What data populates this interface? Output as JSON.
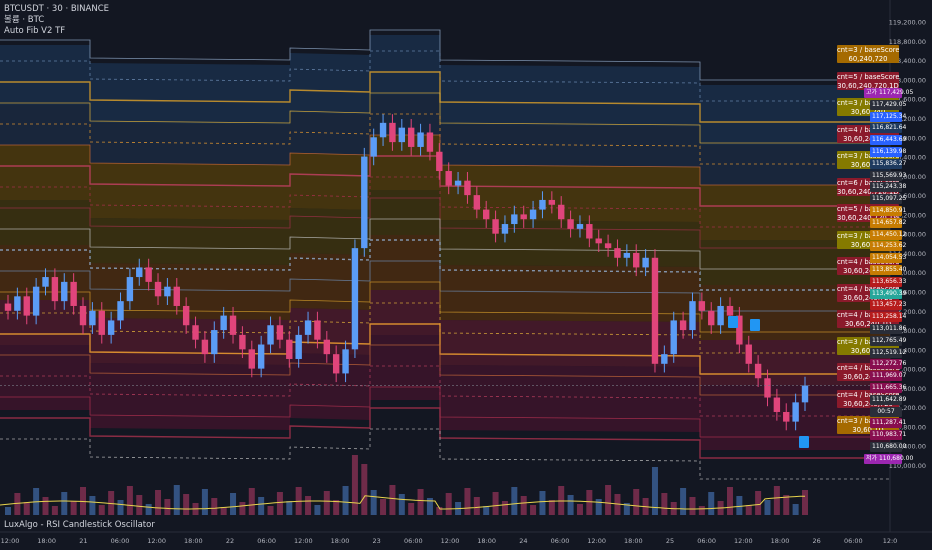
{
  "legend": {
    "symbol": "BTCUSDT · 30 · BINANCE",
    "line2": "볼륨 · BTC",
    "line3": "Auto Fib V2 TF"
  },
  "oscillator_title": "LuxAlgo - RSI Candlestick Oscillator",
  "price_axis": {
    "ticks": [
      "119,200.00",
      "118,800.00",
      "118,400.00",
      "118,000.00",
      "117,600.00",
      "117,200.00",
      "116,800.00",
      "116,400.00",
      "116,000.00",
      "115,600.00",
      "115,200.00",
      "114,800.00",
      "114,400.00",
      "114,000.00",
      "113,600.00",
      "113,200.00",
      "112,800.00",
      "112,400.00",
      "112,000.00",
      "111,600.00",
      "111,200.00",
      "110,800.00",
      "110,400.00",
      "110,000.00"
    ]
  },
  "time_axis": {
    "ticks": [
      "12:00",
      "18:00",
      "21",
      "06:00",
      "12:00",
      "18:00",
      "22",
      "06:00",
      "12:00",
      "18:00",
      "23",
      "06:00",
      "12:00",
      "18:00",
      "24",
      "06:00",
      "12:00",
      "18:00",
      "25",
      "06:00",
      "12:00",
      "18:00",
      "26",
      "06:00",
      "12:0"
    ]
  },
  "price_labels": [
    {
      "text": "고가",
      "value": "117,429.05",
      "color": "#9c27b0"
    },
    {
      "text": "",
      "value": "117,429.05",
      "color": "#2a2e39"
    },
    {
      "text": "",
      "value": "117,125.34",
      "color": "#2962ff"
    },
    {
      "text": "",
      "value": "116,821.64",
      "color": "#1e3a5f"
    },
    {
      "text": "",
      "value": "116,443.69",
      "color": "#2962ff"
    },
    {
      "text": "",
      "value": "116,139.98",
      "color": "#2962ff"
    },
    {
      "text": "",
      "value": "115,836.27",
      "color": "#1e3a5f"
    },
    {
      "text": "",
      "value": "115,569.93",
      "color": "#2a2e39"
    },
    {
      "text": "",
      "value": "115,243.38",
      "color": "#2a2e39"
    },
    {
      "text": "",
      "value": "115,097.25",
      "color": "#2a2e39"
    },
    {
      "text": "",
      "value": "114,850.91",
      "color": "#c77c02"
    },
    {
      "text": "",
      "value": "114,657.82",
      "color": "#c77c02"
    },
    {
      "text": "",
      "value": "114,450.12",
      "color": "#c77c02"
    },
    {
      "text": "",
      "value": "114,253.62",
      "color": "#c77c02"
    },
    {
      "text": "",
      "value": "114,054.53",
      "color": "#c77c02"
    },
    {
      "text": "",
      "value": "113,855.40",
      "color": "#c77c02"
    },
    {
      "text": "",
      "value": "113,656.33",
      "color": "#b71c1c"
    },
    {
      "text": "",
      "value": "113,490.39",
      "color": "#26a69a"
    },
    {
      "text": "",
      "value": "113,457.23",
      "color": "#b71c1c"
    },
    {
      "text": "",
      "value": "113,258.14",
      "color": "#b71c1c"
    },
    {
      "text": "",
      "value": "113,011.86",
      "color": "#2a2e39"
    },
    {
      "text": "",
      "value": "112,765.49",
      "color": "#2a2e39"
    },
    {
      "text": "",
      "value": "112,519.12",
      "color": "#2a2e39"
    },
    {
      "text": "",
      "value": "112,272.76",
      "color": "#880e4f"
    },
    {
      "text": "",
      "value": "111,969.07",
      "color": "#880e4f"
    },
    {
      "text": "",
      "value": "111,665.36",
      "color": "#880e4f"
    },
    {
      "text": "",
      "value": "111,642.89",
      "color": "#2a2e39"
    },
    {
      "text": "",
      "value": "00:57",
      "color": "#2a2e39"
    },
    {
      "text": "",
      "value": "111,287.41",
      "color": "#880e4f"
    },
    {
      "text": "",
      "value": "110,983.71",
      "color": "#880e4f"
    },
    {
      "text": "",
      "value": "110,680.00",
      "color": "#2a2e39"
    },
    {
      "text": "저가",
      "value": "110,680.00",
      "color": "#9c27b0"
    }
  ],
  "tags": [
    {
      "line1": "cnt=3 / baseScore=",
      "line2": "60,240,720",
      "color": "#a56a00"
    },
    {
      "line1": "cnt=5 / baseScore=",
      "line2": "30,60,240,720,1D",
      "color": "#8b1a2b"
    },
    {
      "line1": "cnt=3 / baseScore=",
      "line2": "30,60,240",
      "color": "#857a00"
    },
    {
      "line1": "cnt=4 / baseScore=",
      "line2": "30,60,240,720",
      "color": "#8b1a2b"
    },
    {
      "line1": "cnt=3 / baseScore=",
      "line2": "30,60,240",
      "color": "#857a00"
    },
    {
      "line1": "cnt=6 / baseScore=",
      "line2": "30,60,240,720,1D,1W",
      "color": "#8b1a2b"
    },
    {
      "line1": "cnt=5 / baseScore=",
      "line2": "30,60,240,720,1W",
      "color": "#8b1a2b"
    },
    {
      "line1": "cnt=3 / baseScore=",
      "line2": "30,60,240",
      "color": "#857a00"
    },
    {
      "line1": "cnt=4 / baseScore=",
      "line2": "30,60,240,720",
      "color": "#8b1a2b"
    },
    {
      "line1": "cnt=4 / baseScore=",
      "line2": "30,60,240,720",
      "color": "#8b1a2b"
    },
    {
      "line1": "cnt=4 / baseScore=",
      "line2": "30,60,240,1D",
      "color": "#8b1a2b"
    },
    {
      "line1": "cnt=3 / baseScore=",
      "line2": "30,60,720",
      "color": "#857a00"
    },
    {
      "line1": "cnt=4 / baseScore=",
      "line2": "30,60,240,720",
      "color": "#8b1a2b"
    },
    {
      "line1": "cnt=4 / baseScore=",
      "line2": "30,60,240,720",
      "color": "#8b1a2b"
    },
    {
      "line1": "cnt=3 / baseScore=",
      "line2": "30,60,1D",
      "color": "#a56a00"
    }
  ],
  "chart_data": {
    "type": "candlestick",
    "ylim": [
      110000,
      119400
    ],
    "series": [
      {
        "values": [
          {
            "c": 113200
          },
          {
            "c": 113500
          },
          {
            "c": 113100
          },
          {
            "c": 113700
          },
          {
            "c": 113900
          },
          {
            "c": 113400
          },
          {
            "c": 113800
          },
          {
            "c": 113300
          },
          {
            "c": 112900
          },
          {
            "c": 113200
          },
          {
            "c": 112700
          },
          {
            "c": 113000
          },
          {
            "c": 113400
          },
          {
            "c": 113900
          },
          {
            "c": 114100
          },
          {
            "c": 113800
          },
          {
            "c": 113500
          },
          {
            "c": 113700
          },
          {
            "c": 113300
          },
          {
            "c": 112900
          },
          {
            "c": 112600
          },
          {
            "c": 112300
          },
          {
            "c": 112800
          },
          {
            "c": 113100
          },
          {
            "c": 112700
          },
          {
            "c": 112400
          },
          {
            "c": 112000
          },
          {
            "c": 112500
          },
          {
            "c": 112900
          },
          {
            "c": 112600
          },
          {
            "c": 112200
          },
          {
            "c": 112700
          },
          {
            "c": 113000
          },
          {
            "c": 112600
          },
          {
            "c": 112300
          },
          {
            "c": 111900
          },
          {
            "c": 112400
          },
          {
            "c": 114500
          },
          {
            "c": 116400
          },
          {
            "c": 116800
          },
          {
            "c": 117100
          },
          {
            "c": 116700
          },
          {
            "c": 117000
          },
          {
            "c": 116600
          },
          {
            "c": 116900
          },
          {
            "c": 116500
          },
          {
            "c": 116100
          },
          {
            "c": 115800
          },
          {
            "c": 115900
          },
          {
            "c": 115600
          },
          {
            "c": 115300
          },
          {
            "c": 115100
          },
          {
            "c": 114800
          },
          {
            "c": 115000
          },
          {
            "c": 115200
          },
          {
            "c": 115100
          },
          {
            "c": 115300
          },
          {
            "c": 115500
          },
          {
            "c": 115400
          },
          {
            "c": 115100
          },
          {
            "c": 114900
          },
          {
            "c": 115000
          },
          {
            "c": 114700
          },
          {
            "c": 114600
          },
          {
            "c": 114500
          },
          {
            "c": 114300
          },
          {
            "c": 114400
          },
          {
            "c": 114100
          },
          {
            "c": 114300
          },
          {
            "c": 112100
          },
          {
            "c": 112300
          },
          {
            "c": 113000
          },
          {
            "c": 112800
          },
          {
            "c": 113400
          },
          {
            "c": 113200
          },
          {
            "c": 112900
          },
          {
            "c": 113300
          },
          {
            "c": 113100
          },
          {
            "c": 112500
          },
          {
            "c": 112100
          },
          {
            "c": 111800
          },
          {
            "c": 111400
          },
          {
            "c": 111100
          },
          {
            "c": 110900
          },
          {
            "c": 111300
          },
          {
            "c": 111650
          }
        ]
      }
    ]
  }
}
